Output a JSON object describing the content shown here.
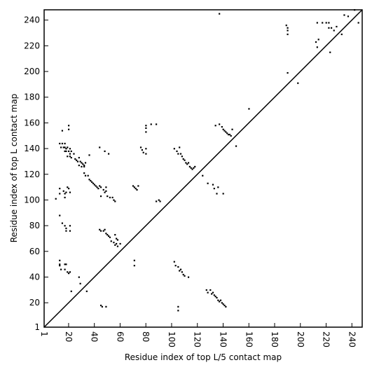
{
  "chart_data": {
    "type": "scatter",
    "xlabel": "Residue index of top L/5 contact map",
    "ylabel": "Residue index of top L contact map",
    "xlim": [
      1,
      248
    ],
    "ylim": [
      1,
      248
    ],
    "x_ticks": [
      1,
      20,
      40,
      60,
      80,
      100,
      120,
      140,
      160,
      180,
      200,
      220,
      240
    ],
    "y_ticks": [
      1,
      20,
      40,
      60,
      80,
      100,
      120,
      140,
      160,
      180,
      200,
      220,
      240
    ],
    "grid": false,
    "diagonal": true,
    "marker_color": "#000000",
    "series": [
      {
        "values_description": "upper triangle (top L contacts)",
        "points": [
          [
            13,
            144
          ],
          [
            15,
            144
          ],
          [
            17,
            144
          ],
          [
            20,
            158
          ],
          [
            20,
            155
          ],
          [
            15,
            154
          ],
          [
            14,
            141
          ],
          [
            16,
            141
          ],
          [
            17,
            141
          ],
          [
            18,
            140
          ],
          [
            19,
            141
          ],
          [
            21,
            140
          ],
          [
            17,
            138
          ],
          [
            18,
            138
          ],
          [
            20,
            138
          ],
          [
            22,
            138
          ],
          [
            21,
            136
          ],
          [
            24,
            136
          ],
          [
            19,
            134
          ],
          [
            21,
            134
          ],
          [
            22,
            133
          ],
          [
            25,
            132
          ],
          [
            26,
            131
          ],
          [
            27,
            130
          ],
          [
            28,
            133
          ],
          [
            29,
            130
          ],
          [
            30,
            129
          ],
          [
            31,
            128
          ],
          [
            32,
            127
          ],
          [
            33,
            129
          ],
          [
            28,
            127
          ],
          [
            30,
            126
          ],
          [
            32,
            126
          ],
          [
            36,
            135
          ],
          [
            44,
            141
          ],
          [
            48,
            138
          ],
          [
            51,
            136
          ],
          [
            32,
            121
          ],
          [
            33,
            119
          ],
          [
            35,
            119
          ],
          [
            36,
            116
          ],
          [
            37,
            115
          ],
          [
            38,
            114
          ],
          [
            39,
            113
          ],
          [
            40,
            112
          ],
          [
            41,
            111
          ],
          [
            42,
            110
          ],
          [
            43,
            109
          ],
          [
            44,
            111
          ],
          [
            45,
            110
          ],
          [
            47,
            108
          ],
          [
            48,
            106
          ],
          [
            49,
            107
          ],
          [
            45,
            103
          ],
          [
            50,
            103
          ],
          [
            52,
            102
          ],
          [
            54,
            102
          ],
          [
            55,
            100
          ],
          [
            56,
            99
          ],
          [
            49,
            110
          ],
          [
            13,
            109
          ],
          [
            13,
            105
          ],
          [
            16,
            107
          ],
          [
            17,
            105
          ],
          [
            18,
            106
          ],
          [
            19,
            110
          ],
          [
            20,
            109
          ],
          [
            21,
            106
          ],
          [
            17,
            102
          ],
          [
            10,
            101
          ],
          [
            13,
            88
          ],
          [
            15,
            82
          ],
          [
            17,
            80
          ],
          [
            18,
            78
          ],
          [
            18,
            76
          ],
          [
            21,
            80
          ],
          [
            21,
            76
          ],
          [
            70,
            111
          ],
          [
            71,
            110
          ],
          [
            72,
            109
          ],
          [
            73,
            108
          ],
          [
            74,
            111
          ],
          [
            76,
            141
          ],
          [
            77,
            139
          ],
          [
            78,
            137
          ],
          [
            80,
            140
          ],
          [
            80,
            136
          ],
          [
            80,
            158
          ],
          [
            80,
            156
          ],
          [
            80,
            153
          ],
          [
            84,
            159
          ],
          [
            88,
            159
          ],
          [
            88,
            99
          ],
          [
            90,
            100
          ],
          [
            91,
            99
          ],
          [
            102,
            140
          ],
          [
            104,
            138
          ],
          [
            105,
            136
          ],
          [
            106,
            141
          ],
          [
            107,
            136
          ],
          [
            108,
            134
          ],
          [
            109,
            132
          ],
          [
            110,
            131
          ],
          [
            111,
            129
          ],
          [
            112,
            128
          ],
          [
            113,
            129
          ],
          [
            114,
            126
          ],
          [
            115,
            125
          ],
          [
            116,
            124
          ],
          [
            117,
            125
          ],
          [
            118,
            126
          ],
          [
            124,
            119
          ],
          [
            128,
            113
          ],
          [
            132,
            112
          ],
          [
            133,
            109
          ],
          [
            135,
            105
          ],
          [
            136,
            110
          ],
          [
            140,
            105
          ],
          [
            134,
            158
          ],
          [
            137,
            159
          ],
          [
            139,
            157
          ],
          [
            140,
            155
          ],
          [
            141,
            154
          ],
          [
            142,
            153
          ],
          [
            143,
            152
          ],
          [
            144,
            151
          ],
          [
            145,
            151
          ],
          [
            146,
            150
          ],
          [
            147,
            155
          ],
          [
            150,
            142
          ],
          [
            137,
            245
          ],
          [
            160,
            171
          ],
          [
            189,
            236
          ],
          [
            190,
            234
          ],
          [
            190,
            232
          ],
          [
            190,
            229
          ],
          [
            190,
            199
          ],
          [
            198,
            191
          ],
          [
            213,
            238
          ],
          [
            212,
            223
          ],
          [
            214,
            225
          ],
          [
            213,
            219
          ],
          [
            217,
            238
          ],
          [
            220,
            238
          ],
          [
            222,
            238
          ],
          [
            222,
            234
          ],
          [
            223,
            215
          ],
          [
            224,
            234
          ],
          [
            226,
            232
          ],
          [
            228,
            235
          ],
          [
            232,
            229
          ],
          [
            234,
            244
          ],
          [
            237,
            243
          ],
          [
            242,
            248
          ],
          [
            245,
            238
          ]
        ]
      },
      {
        "values_description": "lower triangle (top L/5 contacts)",
        "points": [
          [
            13,
            53
          ],
          [
            13,
            50
          ],
          [
            13,
            49
          ],
          [
            14,
            46
          ],
          [
            17,
            50
          ],
          [
            18,
            50
          ],
          [
            19,
            44
          ],
          [
            20,
            43
          ],
          [
            21,
            44
          ],
          [
            22,
            29
          ],
          [
            17,
            46
          ],
          [
            28,
            40
          ],
          [
            29,
            35
          ],
          [
            34,
            29
          ],
          [
            44,
            77
          ],
          [
            45,
            76
          ],
          [
            47,
            76
          ],
          [
            48,
            77
          ],
          [
            49,
            74
          ],
          [
            50,
            73
          ],
          [
            51,
            72
          ],
          [
            52,
            71
          ],
          [
            53,
            68
          ],
          [
            55,
            67
          ],
          [
            56,
            65
          ],
          [
            57,
            66
          ],
          [
            58,
            64
          ],
          [
            60,
            66
          ],
          [
            56,
            73
          ],
          [
            57,
            70
          ],
          [
            58,
            69
          ],
          [
            45,
            18
          ],
          [
            46,
            17
          ],
          [
            49,
            17
          ],
          [
            71,
            53
          ],
          [
            71,
            49
          ],
          [
            102,
            52
          ],
          [
            103,
            49
          ],
          [
            105,
            48
          ],
          [
            106,
            45
          ],
          [
            107,
            46
          ],
          [
            108,
            44
          ],
          [
            109,
            42
          ],
          [
            110,
            41
          ],
          [
            113,
            40
          ],
          [
            105,
            17
          ],
          [
            105,
            14
          ],
          [
            127,
            30
          ],
          [
            128,
            28
          ],
          [
            130,
            30
          ],
          [
            131,
            27
          ],
          [
            132,
            28
          ],
          [
            133,
            26
          ],
          [
            134,
            25
          ],
          [
            135,
            24
          ],
          [
            136,
            22
          ],
          [
            137,
            21
          ],
          [
            138,
            22
          ],
          [
            139,
            20
          ],
          [
            140,
            19
          ],
          [
            141,
            18
          ],
          [
            142,
            17
          ]
        ]
      }
    ]
  }
}
